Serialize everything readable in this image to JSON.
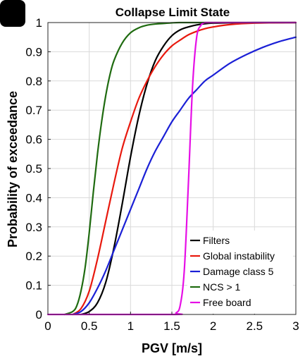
{
  "chart_data": {
    "type": "line",
    "title": "Collapse Limit State",
    "xlabel": "PGV [m/s]",
    "ylabel": "Probability of exceedance",
    "xlim": [
      0,
      3
    ],
    "ylim": [
      0,
      1
    ],
    "xticks": [
      0,
      0.5,
      1,
      1.5,
      2,
      2.5,
      3
    ],
    "xtick_labels": [
      "0",
      "0.5",
      "1",
      "1.5",
      "2",
      "2.5",
      "3"
    ],
    "yticks": [
      0,
      0.1,
      0.2,
      0.3,
      0.4,
      0.5,
      0.6,
      0.7,
      0.8,
      0.9,
      1
    ],
    "ytick_labels": [
      "0",
      "0.1",
      "0.2",
      "0.3",
      "0.4",
      "0.5",
      "0.6",
      "0.7",
      "0.8",
      "0.9",
      "1"
    ],
    "grid": true,
    "legend_position": "bottom-right",
    "series": [
      {
        "name": "Filters",
        "color": "#000000",
        "x": [
          0.4,
          0.5,
          0.6,
          0.7,
          0.8,
          0.9,
          1.0,
          1.1,
          1.2,
          1.3,
          1.4,
          1.5,
          1.6,
          1.7,
          1.8,
          1.9,
          2.0,
          2.2,
          2.5,
          3.0
        ],
        "y": [
          0.0,
          0.01,
          0.04,
          0.11,
          0.23,
          0.38,
          0.54,
          0.68,
          0.79,
          0.87,
          0.92,
          0.955,
          0.975,
          0.985,
          0.992,
          0.996,
          0.998,
          0.999,
          1.0,
          1.0
        ]
      },
      {
        "name": "Global instability",
        "color": "#e8190e",
        "x": [
          0.3,
          0.4,
          0.5,
          0.6,
          0.7,
          0.8,
          0.9,
          1.0,
          1.1,
          1.2,
          1.3,
          1.4,
          1.5,
          1.6,
          1.7,
          1.8,
          1.9,
          2.0,
          2.2,
          2.5,
          3.0
        ],
        "y": [
          0.0,
          0.02,
          0.08,
          0.19,
          0.32,
          0.45,
          0.57,
          0.66,
          0.74,
          0.8,
          0.85,
          0.89,
          0.92,
          0.94,
          0.958,
          0.97,
          0.979,
          0.985,
          0.993,
          0.998,
          1.0
        ]
      },
      {
        "name": "Damage class 5",
        "color": "#1b20d6",
        "x": [
          0.3,
          0.4,
          0.5,
          0.6,
          0.7,
          0.8,
          0.9,
          1.0,
          1.1,
          1.2,
          1.3,
          1.4,
          1.5,
          1.6,
          1.7,
          1.8,
          1.9,
          2.0,
          2.2,
          2.4,
          2.6,
          2.8,
          3.0
        ],
        "y": [
          0.0,
          0.01,
          0.04,
          0.09,
          0.15,
          0.22,
          0.29,
          0.36,
          0.43,
          0.5,
          0.56,
          0.61,
          0.66,
          0.7,
          0.74,
          0.77,
          0.8,
          0.82,
          0.86,
          0.89,
          0.915,
          0.935,
          0.95
        ]
      },
      {
        "name": "NCS > 1",
        "color": "#1f6b10",
        "x": [
          0.2,
          0.3,
          0.35,
          0.4,
          0.45,
          0.5,
          0.55,
          0.6,
          0.65,
          0.7,
          0.75,
          0.8,
          0.9,
          1.0,
          1.1,
          1.2,
          1.3,
          1.4,
          1.5,
          1.6,
          1.8,
          2.0,
          3.0
        ],
        "y": [
          0.0,
          0.01,
          0.03,
          0.08,
          0.16,
          0.28,
          0.42,
          0.55,
          0.66,
          0.75,
          0.82,
          0.87,
          0.93,
          0.965,
          0.982,
          0.991,
          0.995,
          0.997,
          0.999,
          1.0,
          1.0,
          1.0,
          1.0
        ]
      },
      {
        "name": "Free board",
        "color": "#e60fe6",
        "x": [
          0.0,
          1.5,
          1.55,
          1.6,
          1.65,
          1.7,
          1.75,
          1.8,
          1.85,
          1.9,
          1.95,
          2.0,
          3.0
        ],
        "y": [
          0.0,
          0.0,
          0.005,
          0.03,
          0.15,
          0.45,
          0.78,
          0.95,
          0.99,
          1.0,
          1.0,
          1.0,
          1.0
        ]
      }
    ]
  }
}
